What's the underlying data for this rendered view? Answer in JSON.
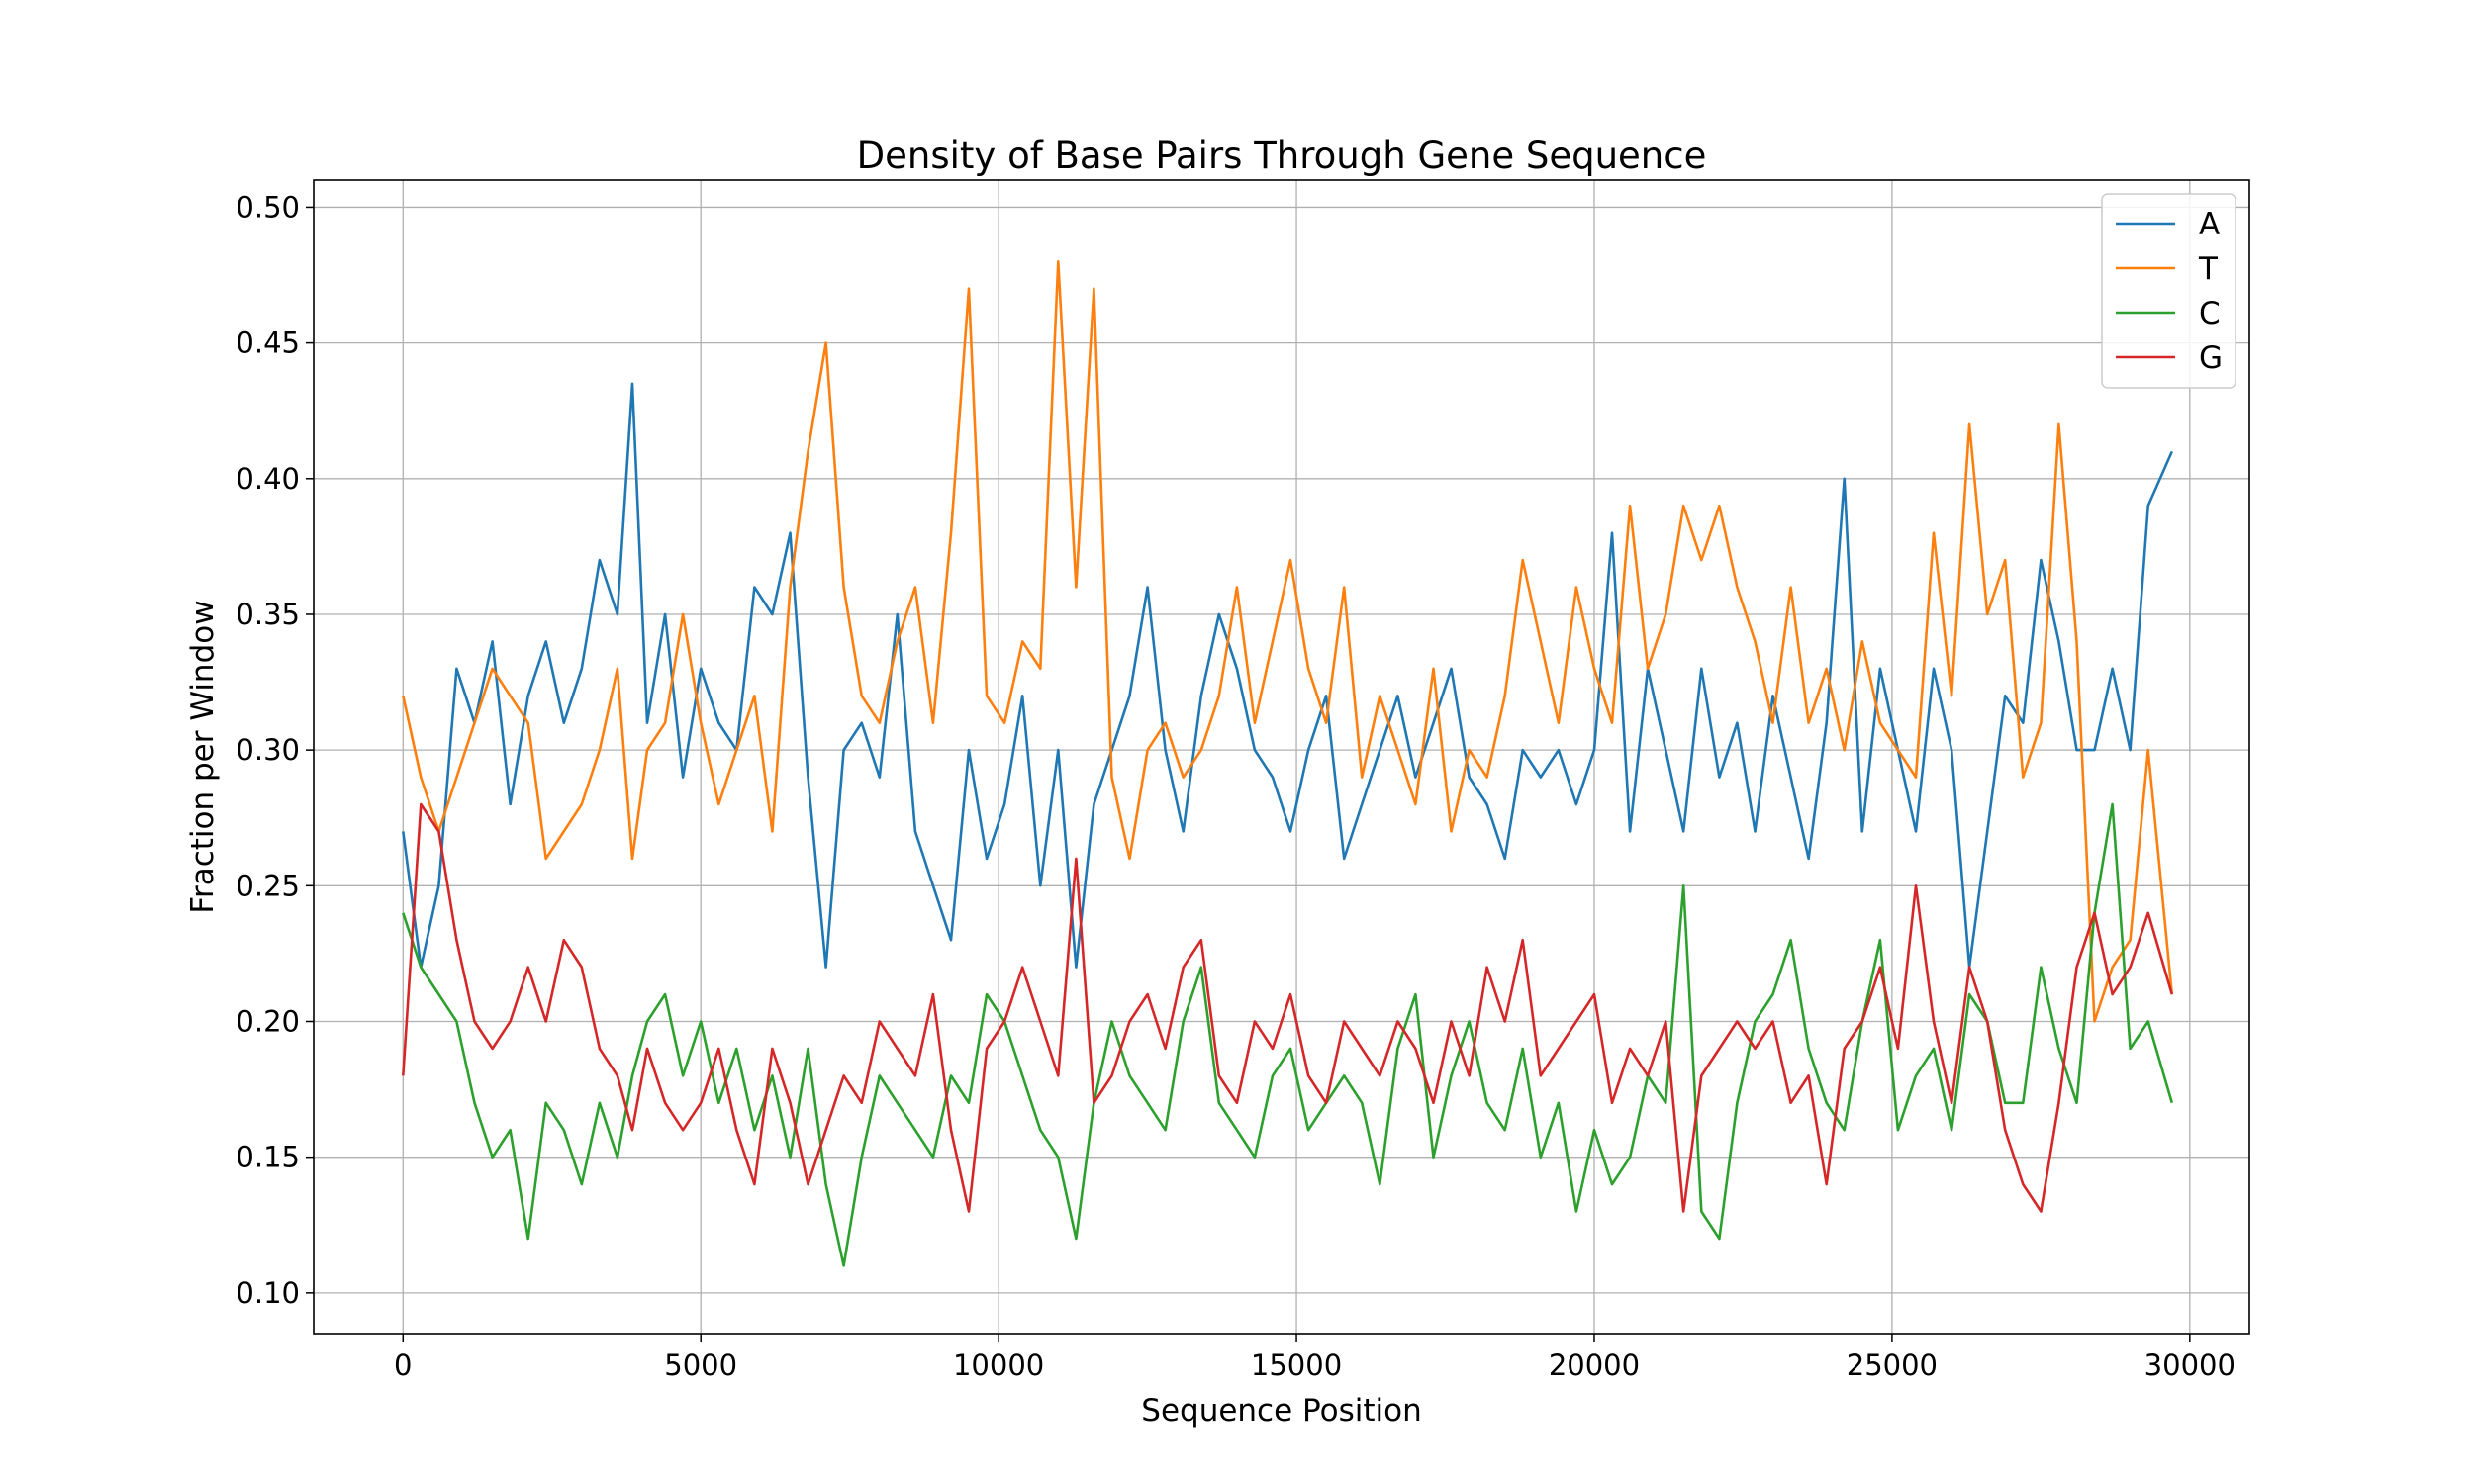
{
  "chart_data": {
    "type": "line",
    "title": "Density of Base Pairs Through Gene Sequence",
    "xlabel": "Sequence Position",
    "ylabel": "Fraction per Window",
    "xlim": [
      -1500,
      31000
    ],
    "ylim": [
      0.085,
      0.51
    ],
    "x_ticks": [
      0,
      5000,
      10000,
      15000,
      20000,
      25000,
      30000
    ],
    "y_ticks": [
      0.1,
      0.15,
      0.2,
      0.25,
      0.3,
      0.35,
      0.4,
      0.45,
      0.5
    ],
    "x_tick_labels": [
      "0",
      "5000",
      "10000",
      "15000",
      "20000",
      "25000",
      "30000"
    ],
    "y_tick_labels": [
      "0.10",
      "0.15",
      "0.20",
      "0.25",
      "0.30",
      "0.35",
      "0.40",
      "0.45",
      "0.50"
    ],
    "grid": true,
    "legend_position": "top-right",
    "series": [
      {
        "name": "A",
        "color": "#1f77b4",
        "x": [
          0,
          300,
          600,
          900,
          1200,
          1500,
          1800,
          2100,
          2400,
          2700,
          3000,
          3300,
          3600,
          3850,
          4100,
          4400,
          4700,
          5000,
          5300,
          5600,
          5900,
          6200,
          6500,
          6800,
          7100,
          7400,
          7700,
          8000,
          8300,
          8600,
          8900,
          9200,
          9500,
          9800,
          10100,
          10400,
          10700,
          11000,
          11300,
          11600,
          11900,
          12200,
          12500,
          12800,
          13100,
          13400,
          13700,
          14000,
          14300,
          14600,
          14900,
          15200,
          15500,
          15800,
          16100,
          16400,
          16700,
          17000,
          17300,
          17600,
          17900,
          18200,
          18500,
          18800,
          19100,
          19400,
          19700,
          20000,
          20300,
          20600,
          20900,
          21200,
          21500,
          21800,
          22100,
          22400,
          22700,
          23000,
          23300,
          23600,
          23900,
          24200,
          24500,
          24800,
          25100,
          25400,
          25700,
          26000,
          26300,
          26600,
          26900,
          27200,
          27500,
          27800,
          28100,
          28400,
          28700,
          29000,
          29300,
          29700
        ],
        "y": [
          0.27,
          0.22,
          0.25,
          0.33,
          0.31,
          0.34,
          0.28,
          0.32,
          0.34,
          0.31,
          0.33,
          0.37,
          0.35,
          0.435,
          0.31,
          0.35,
          0.29,
          0.33,
          0.31,
          0.3,
          0.36,
          0.35,
          0.38,
          0.29,
          0.22,
          0.3,
          0.31,
          0.29,
          0.35,
          0.27,
          0.25,
          0.23,
          0.3,
          0.26,
          0.28,
          0.32,
          0.25,
          0.3,
          0.22,
          0.28,
          0.3,
          0.32,
          0.36,
          0.3,
          0.27,
          0.32,
          0.35,
          0.33,
          0.3,
          0.29,
          0.27,
          0.3,
          0.32,
          0.26,
          0.28,
          0.3,
          0.32,
          0.29,
          0.31,
          0.33,
          0.29,
          0.28,
          0.26,
          0.3,
          0.29,
          0.3,
          0.28,
          0.3,
          0.38,
          0.27,
          0.33,
          0.3,
          0.27,
          0.33,
          0.29,
          0.31,
          0.27,
          0.32,
          0.29,
          0.26,
          0.31,
          0.4,
          0.27,
          0.33,
          0.3,
          0.27,
          0.33,
          0.3,
          0.22,
          0.27,
          0.32,
          0.31,
          0.37,
          0.34,
          0.3,
          0.3,
          0.33,
          0.3,
          0.39,
          0.41
        ]
      },
      {
        "name": "T",
        "color": "#ff7f0e",
        "x": [
          0,
          300,
          600,
          900,
          1200,
          1500,
          1800,
          2100,
          2400,
          2700,
          3000,
          3300,
          3600,
          3850,
          4100,
          4400,
          4700,
          5000,
          5300,
          5600,
          5900,
          6200,
          6500,
          6800,
          7100,
          7400,
          7700,
          8000,
          8300,
          8600,
          8900,
          9200,
          9500,
          9800,
          10100,
          10400,
          10700,
          11000,
          11300,
          11600,
          11900,
          12200,
          12500,
          12800,
          13100,
          13400,
          13700,
          14000,
          14300,
          14600,
          14900,
          15200,
          15500,
          15800,
          16100,
          16400,
          16700,
          17000,
          17300,
          17600,
          17900,
          18200,
          18500,
          18800,
          19100,
          19400,
          19700,
          20000,
          20300,
          20600,
          20900,
          21200,
          21500,
          21800,
          22100,
          22400,
          22700,
          23000,
          23300,
          23600,
          23900,
          24200,
          24500,
          24800,
          25100,
          25400,
          25700,
          26000,
          26300,
          26600,
          26900,
          27200,
          27500,
          27800,
          28100,
          28400,
          28700,
          29000,
          29300,
          29700
        ],
        "y": [
          0.32,
          0.29,
          0.27,
          0.29,
          0.31,
          0.33,
          0.32,
          0.31,
          0.26,
          0.27,
          0.28,
          0.3,
          0.33,
          0.26,
          0.3,
          0.31,
          0.35,
          0.31,
          0.28,
          0.3,
          0.32,
          0.27,
          0.36,
          0.41,
          0.45,
          0.36,
          0.32,
          0.31,
          0.34,
          0.36,
          0.31,
          0.38,
          0.47,
          0.32,
          0.31,
          0.34,
          0.33,
          0.48,
          0.36,
          0.47,
          0.29,
          0.26,
          0.3,
          0.31,
          0.29,
          0.3,
          0.32,
          0.36,
          0.31,
          0.34,
          0.37,
          0.33,
          0.31,
          0.36,
          0.29,
          0.32,
          0.3,
          0.28,
          0.33,
          0.27,
          0.3,
          0.29,
          0.32,
          0.37,
          0.34,
          0.31,
          0.36,
          0.33,
          0.31,
          0.39,
          0.33,
          0.35,
          0.39,
          0.37,
          0.39,
          0.36,
          0.34,
          0.31,
          0.36,
          0.31,
          0.33,
          0.3,
          0.34,
          0.31,
          0.3,
          0.29,
          0.38,
          0.32,
          0.42,
          0.35,
          0.37,
          0.29,
          0.31,
          0.42,
          0.34,
          0.2,
          0.22,
          0.23,
          0.3,
          0.21
        ]
      },
      {
        "name": "C",
        "color": "#2ca02c",
        "x": [
          0,
          300,
          600,
          900,
          1200,
          1500,
          1800,
          2100,
          2400,
          2700,
          3000,
          3300,
          3600,
          3850,
          4100,
          4400,
          4700,
          5000,
          5300,
          5600,
          5900,
          6200,
          6500,
          6800,
          7100,
          7400,
          7700,
          8000,
          8300,
          8600,
          8900,
          9200,
          9500,
          9800,
          10100,
          10400,
          10700,
          11000,
          11300,
          11600,
          11900,
          12200,
          12500,
          12800,
          13100,
          13400,
          13700,
          14000,
          14300,
          14600,
          14900,
          15200,
          15500,
          15800,
          16100,
          16400,
          16700,
          17000,
          17300,
          17600,
          17900,
          18200,
          18500,
          18800,
          19100,
          19400,
          19700,
          20000,
          20300,
          20600,
          20900,
          21200,
          21500,
          21800,
          22100,
          22400,
          22700,
          23000,
          23300,
          23600,
          23900,
          24200,
          24500,
          24800,
          25100,
          25400,
          25700,
          26000,
          26300,
          26600,
          26900,
          27200,
          27500,
          27800,
          28100,
          28400,
          28700,
          29000,
          29300,
          29700
        ],
        "y": [
          0.24,
          0.22,
          0.21,
          0.2,
          0.17,
          0.15,
          0.16,
          0.12,
          0.17,
          0.16,
          0.14,
          0.17,
          0.15,
          0.18,
          0.2,
          0.21,
          0.18,
          0.2,
          0.17,
          0.19,
          0.16,
          0.18,
          0.15,
          0.19,
          0.14,
          0.11,
          0.15,
          0.18,
          0.17,
          0.16,
          0.15,
          0.18,
          0.17,
          0.21,
          0.2,
          0.18,
          0.16,
          0.15,
          0.12,
          0.17,
          0.2,
          0.18,
          0.17,
          0.16,
          0.2,
          0.22,
          0.17,
          0.16,
          0.15,
          0.18,
          0.19,
          0.16,
          0.17,
          0.18,
          0.17,
          0.14,
          0.19,
          0.21,
          0.15,
          0.18,
          0.2,
          0.17,
          0.16,
          0.19,
          0.15,
          0.17,
          0.13,
          0.16,
          0.14,
          0.15,
          0.18,
          0.17,
          0.25,
          0.13,
          0.12,
          0.17,
          0.2,
          0.21,
          0.23,
          0.19,
          0.17,
          0.16,
          0.2,
          0.23,
          0.16,
          0.18,
          0.19,
          0.16,
          0.21,
          0.2,
          0.17,
          0.17,
          0.22,
          0.19,
          0.17,
          0.24,
          0.28,
          0.19,
          0.2,
          0.17
        ]
      },
      {
        "name": "G",
        "color": "#d62728",
        "x": [
          0,
          300,
          600,
          900,
          1200,
          1500,
          1800,
          2100,
          2400,
          2700,
          3000,
          3300,
          3600,
          3850,
          4100,
          4400,
          4700,
          5000,
          5300,
          5600,
          5900,
          6200,
          6500,
          6800,
          7100,
          7400,
          7700,
          8000,
          8300,
          8600,
          8900,
          9200,
          9500,
          9800,
          10100,
          10400,
          10700,
          11000,
          11300,
          11600,
          11900,
          12200,
          12500,
          12800,
          13100,
          13400,
          13700,
          14000,
          14300,
          14600,
          14900,
          15200,
          15500,
          15800,
          16100,
          16400,
          16700,
          17000,
          17300,
          17600,
          17900,
          18200,
          18500,
          18800,
          19100,
          19400,
          19700,
          20000,
          20300,
          20600,
          20900,
          21200,
          21500,
          21800,
          22100,
          22400,
          22700,
          23000,
          23300,
          23600,
          23900,
          24200,
          24500,
          24800,
          25100,
          25400,
          25700,
          26000,
          26300,
          26600,
          26900,
          27200,
          27500,
          27800,
          28100,
          28400,
          28700,
          29000,
          29300,
          29700
        ],
        "y": [
          0.18,
          0.28,
          0.27,
          0.23,
          0.2,
          0.19,
          0.2,
          0.22,
          0.2,
          0.23,
          0.22,
          0.19,
          0.18,
          0.16,
          0.19,
          0.17,
          0.16,
          0.17,
          0.19,
          0.16,
          0.14,
          0.19,
          0.17,
          0.14,
          0.16,
          0.18,
          0.17,
          0.2,
          0.19,
          0.18,
          0.21,
          0.16,
          0.13,
          0.19,
          0.2,
          0.22,
          0.2,
          0.18,
          0.26,
          0.17,
          0.18,
          0.2,
          0.21,
          0.19,
          0.22,
          0.23,
          0.18,
          0.17,
          0.2,
          0.19,
          0.21,
          0.18,
          0.17,
          0.2,
          0.19,
          0.18,
          0.2,
          0.19,
          0.17,
          0.2,
          0.18,
          0.22,
          0.2,
          0.23,
          0.18,
          0.19,
          0.2,
          0.21,
          0.17,
          0.19,
          0.18,
          0.2,
          0.13,
          0.18,
          0.19,
          0.2,
          0.19,
          0.2,
          0.17,
          0.18,
          0.14,
          0.19,
          0.2,
          0.22,
          0.19,
          0.25,
          0.2,
          0.17,
          0.22,
          0.2,
          0.16,
          0.14,
          0.13,
          0.17,
          0.22,
          0.24,
          0.21,
          0.22,
          0.24,
          0.21
        ]
      }
    ]
  }
}
